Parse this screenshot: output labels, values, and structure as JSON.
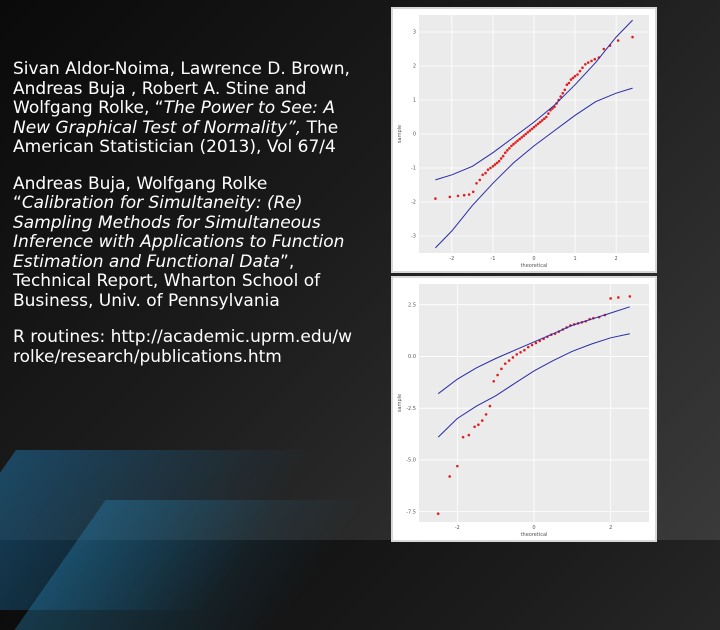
{
  "references": [
    {
      "authors": "Sivan Aldor-Noima, Lawrence D. Brown, Andreas Buja , Robert A. Stine and Wolfgang Rolke, “",
      "title": "The Power to See: A New Graphical Test of Normality”,",
      "rest": " The American Statistician (2013), Vol 67/4"
    },
    {
      "authors": "Andreas Buja, Wolfgang Rolke “",
      "title": "Calibration for Simultaneity: (Re) Sampling Methods for Simultaneous Inference with Applications to Function Estimation and Functional Data",
      "rest": "”, Technical Report, Wharton School of Business, Univ. of Pennsylvania"
    },
    {
      "authors": "R routines: http://academic.uprm.edu/wrolke/research/publications.htm",
      "title": "",
      "rest": ""
    }
  ],
  "colors": {
    "band": "#2a2aa8",
    "points": "#e02020",
    "grid": "#e6e6e6",
    "panel": "#ebebeb"
  },
  "chart_data": [
    {
      "type": "scatter",
      "title": "",
      "xlabel": "theoretical",
      "ylabel": "sample",
      "xticks": [
        "-2",
        "-1",
        "0",
        "1",
        "2"
      ],
      "yticks": [
        "3",
        "2",
        "1",
        "0",
        "-1",
        "-2",
        "-3"
      ],
      "xlim": [
        -2.8,
        2.8
      ],
      "ylim": [
        -3.5,
        3.5
      ],
      "grid": true,
      "series": [
        {
          "kind": "points",
          "x": [
            -2.4,
            -2.05,
            -1.85,
            -1.7,
            -1.58,
            -1.48,
            -1.4,
            -1.32,
            -1.25,
            -1.18,
            -1.12,
            -1.06,
            -1.0,
            -0.95,
            -0.9,
            -0.85,
            -0.8,
            -0.75,
            -0.7,
            -0.65,
            -0.6,
            -0.55,
            -0.5,
            -0.45,
            -0.4,
            -0.35,
            -0.3,
            -0.25,
            -0.2,
            -0.15,
            -0.1,
            -0.05,
            0.0,
            0.05,
            0.1,
            0.15,
            0.2,
            0.25,
            0.3,
            0.35,
            0.4,
            0.45,
            0.5,
            0.55,
            0.6,
            0.65,
            0.7,
            0.75,
            0.8,
            0.85,
            0.9,
            0.95,
            1.0,
            1.06,
            1.12,
            1.18,
            1.25,
            1.32,
            1.4,
            1.48,
            1.58,
            1.7,
            1.85,
            2.05,
            2.4
          ],
          "y": [
            -1.9,
            -1.85,
            -1.82,
            -1.8,
            -1.78,
            -1.7,
            -1.45,
            -1.35,
            -1.2,
            -1.15,
            -1.05,
            -1.0,
            -0.95,
            -0.9,
            -0.85,
            -0.8,
            -0.72,
            -0.65,
            -0.55,
            -0.48,
            -0.42,
            -0.35,
            -0.3,
            -0.25,
            -0.2,
            -0.15,
            -0.1,
            -0.05,
            0.0,
            0.05,
            0.1,
            0.15,
            0.2,
            0.25,
            0.3,
            0.35,
            0.4,
            0.45,
            0.5,
            0.6,
            0.7,
            0.75,
            0.8,
            0.9,
            1.0,
            1.1,
            1.2,
            1.3,
            1.45,
            1.5,
            1.6,
            1.65,
            1.7,
            1.75,
            1.85,
            1.95,
            2.05,
            2.1,
            2.15,
            2.2,
            2.25,
            2.5,
            2.6,
            2.75,
            2.85
          ]
        },
        {
          "kind": "upper-band",
          "x": [
            -2.4,
            -2.0,
            -1.5,
            -1.0,
            -0.5,
            0.0,
            0.5,
            1.0,
            1.5,
            2.0,
            2.4
          ],
          "y": [
            -1.35,
            -1.2,
            -0.95,
            -0.55,
            -0.1,
            0.35,
            0.85,
            1.45,
            2.1,
            2.85,
            3.35
          ]
        },
        {
          "kind": "lower-band",
          "x": [
            -2.4,
            -2.0,
            -1.5,
            -1.0,
            -0.5,
            0.0,
            0.5,
            1.0,
            1.5,
            2.0,
            2.4
          ],
          "y": [
            -3.35,
            -2.85,
            -2.1,
            -1.45,
            -0.85,
            -0.35,
            0.1,
            0.55,
            0.95,
            1.2,
            1.35
          ]
        }
      ]
    },
    {
      "type": "scatter",
      "title": "",
      "xlabel": "theoretical",
      "ylabel": "sample",
      "xticks": [
        "-2",
        "0",
        "2"
      ],
      "yticks": [
        "2.5",
        "0.0",
        "-2.5",
        "-5.0",
        "-7.5"
      ],
      "xlim": [
        -3.0,
        3.0
      ],
      "ylim": [
        -8.0,
        3.5
      ],
      "grid": true,
      "series": [
        {
          "kind": "points",
          "x": [
            -2.5,
            -2.2,
            -2.0,
            -1.85,
            -1.7,
            -1.55,
            -1.45,
            -1.35,
            -1.25,
            -1.15,
            -1.05,
            -0.95,
            -0.85,
            -0.75,
            -0.65,
            -0.55,
            -0.45,
            -0.35,
            -0.25,
            -0.15,
            -0.05,
            0.05,
            0.15,
            0.25,
            0.35,
            0.45,
            0.55,
            0.65,
            0.75,
            0.85,
            0.95,
            1.05,
            1.15,
            1.25,
            1.35,
            1.45,
            1.55,
            1.7,
            1.85,
            2.0,
            2.2,
            2.5
          ],
          "y": [
            -7.6,
            -5.8,
            -5.3,
            -3.9,
            -3.8,
            -3.4,
            -3.3,
            -3.1,
            -2.8,
            -2.4,
            -1.2,
            -0.9,
            -0.6,
            -0.35,
            -0.2,
            -0.05,
            0.1,
            0.2,
            0.3,
            0.45,
            0.55,
            0.65,
            0.75,
            0.85,
            0.95,
            1.05,
            1.1,
            1.2,
            1.3,
            1.4,
            1.5,
            1.55,
            1.6,
            1.65,
            1.7,
            1.8,
            1.85,
            1.9,
            2.0,
            2.8,
            2.85,
            2.9
          ]
        },
        {
          "kind": "upper-band",
          "x": [
            -2.5,
            -2.0,
            -1.5,
            -1.0,
            -0.5,
            0.0,
            0.5,
            1.0,
            1.5,
            2.0,
            2.5
          ],
          "y": [
            -1.8,
            -1.1,
            -0.55,
            -0.1,
            0.3,
            0.7,
            1.1,
            1.5,
            1.8,
            2.1,
            2.4
          ]
        },
        {
          "kind": "lower-band",
          "x": [
            -2.5,
            -2.0,
            -1.5,
            -1.0,
            -0.5,
            0.0,
            0.5,
            1.0,
            1.5,
            2.0,
            2.5
          ],
          "y": [
            -3.9,
            -3.0,
            -2.4,
            -1.9,
            -1.3,
            -0.7,
            -0.2,
            0.25,
            0.6,
            0.9,
            1.1
          ]
        }
      ]
    }
  ]
}
